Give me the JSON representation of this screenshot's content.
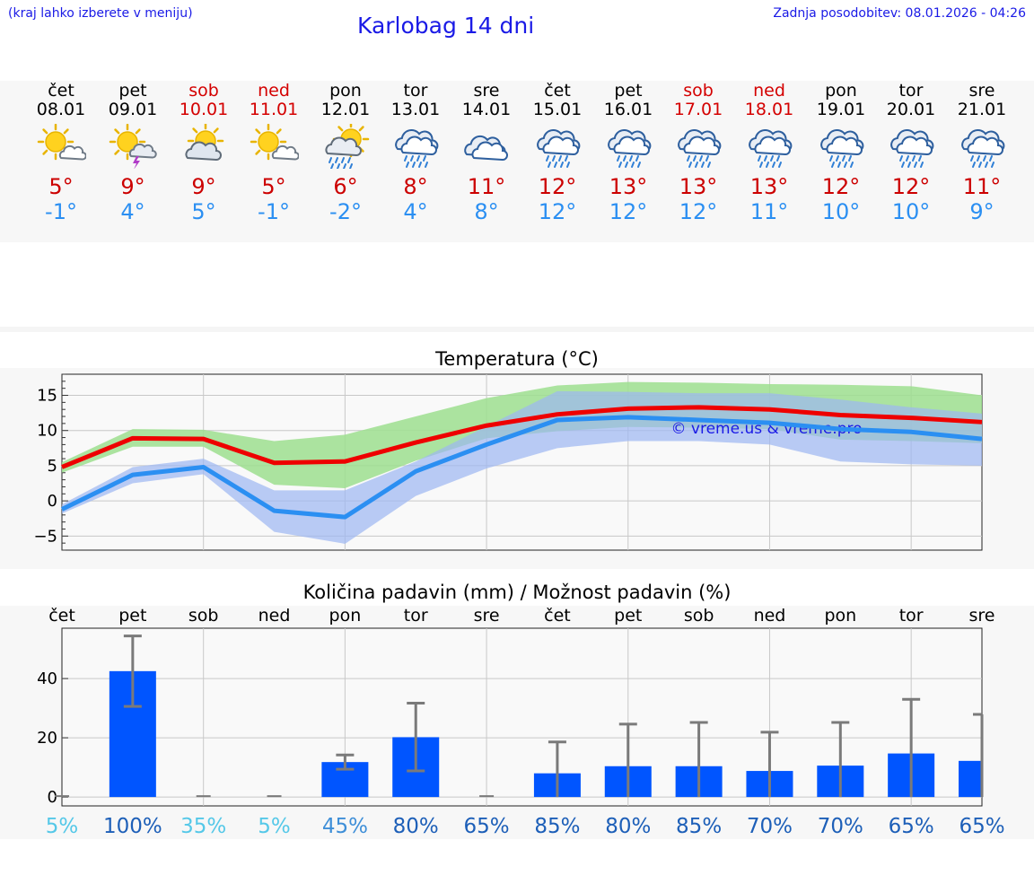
{
  "header": {
    "hint": "(kraj lahko izberete v meniju)",
    "title": "Karlobag 14 dni",
    "updated": "Zadnja posodobitev: 08.01.2026 - 04:26"
  },
  "days": [
    {
      "name": "čet",
      "date": "08.01",
      "weekend": false,
      "icon": "sun-cloud-icon",
      "tmax": "5°",
      "tmin": "-1°"
    },
    {
      "name": "pet",
      "date": "09.01",
      "weekend": false,
      "icon": "sun-thunderstorm-icon",
      "tmax": "9°",
      "tmin": "4°"
    },
    {
      "name": "sob",
      "date": "10.01",
      "weekend": true,
      "icon": "partly-cloudy-icon",
      "tmax": "9°",
      "tmin": "5°"
    },
    {
      "name": "ned",
      "date": "11.01",
      "weekend": true,
      "icon": "sun-cloud-icon",
      "tmax": "5°",
      "tmin": "-1°"
    },
    {
      "name": "pon",
      "date": "12.01",
      "weekend": false,
      "icon": "sun-rain-icon",
      "tmax": "6°",
      "tmin": "-2°"
    },
    {
      "name": "tor",
      "date": "13.01",
      "weekend": false,
      "icon": "rain-cloud-icon",
      "tmax": "8°",
      "tmin": "4°"
    },
    {
      "name": "sre",
      "date": "14.01",
      "weekend": false,
      "icon": "cloudy-icon",
      "tmax": "11°",
      "tmin": "8°"
    },
    {
      "name": "čet",
      "date": "15.01",
      "weekend": false,
      "icon": "rain-cloud-icon",
      "tmax": "12°",
      "tmin": "12°"
    },
    {
      "name": "pet",
      "date": "16.01",
      "weekend": false,
      "icon": "rain-cloud-icon",
      "tmax": "13°",
      "tmin": "12°"
    },
    {
      "name": "sob",
      "date": "17.01",
      "weekend": true,
      "icon": "rain-cloud-icon",
      "tmax": "13°",
      "tmin": "12°"
    },
    {
      "name": "ned",
      "date": "18.01",
      "weekend": true,
      "icon": "rain-cloud-icon",
      "tmax": "13°",
      "tmin": "11°"
    },
    {
      "name": "pon",
      "date": "19.01",
      "weekend": false,
      "icon": "rain-cloud-icon",
      "tmax": "12°",
      "tmin": "10°"
    },
    {
      "name": "tor",
      "date": "20.01",
      "weekend": false,
      "icon": "rain-cloud-icon",
      "tmax": "12°",
      "tmin": "10°"
    },
    {
      "name": "sre",
      "date": "21.01",
      "weekend": false,
      "icon": "rain-cloud-icon",
      "tmax": "11°",
      "tmin": "9°"
    }
  ],
  "colors": {
    "max": "#ee0000",
    "min": "#2b8ff2",
    "band_max": "#9ddf8f",
    "band_min": "#9db6f2",
    "bar": "#0055ff",
    "error": "#7a7a7a",
    "link": "#1a1ae6"
  },
  "chart_data": [
    {
      "type": "line",
      "title": "Temperatura (°C)",
      "watermark": "© vreme.us & vreme.pro",
      "ylim": [
        -7,
        18
      ],
      "yticks": [
        "15",
        "10",
        "5",
        "0",
        "−5"
      ],
      "ytick_values": [
        15,
        10,
        5,
        0,
        -5
      ],
      "x": [
        0,
        1,
        2,
        3,
        4,
        5,
        6,
        7,
        8,
        9,
        10,
        11,
        12,
        13
      ],
      "series": [
        {
          "name": "max",
          "values": [
            4.8,
            8.9,
            8.8,
            5.4,
            5.6,
            8.3,
            10.7,
            12.3,
            13.1,
            13.3,
            13.0,
            12.2,
            11.8,
            11.2
          ]
        },
        {
          "name": "min",
          "values": [
            -1.2,
            3.7,
            4.8,
            -1.4,
            -2.3,
            4.2,
            8.0,
            11.5,
            11.9,
            11.5,
            11.1,
            10.2,
            9.8,
            8.8
          ]
        }
      ],
      "bands": [
        {
          "name": "max_range",
          "low": [
            4.0,
            7.7,
            7.7,
            2.3,
            1.8,
            5.7,
            8.9,
            9.9,
            10.5,
            10.4,
            10.2,
            8.7,
            8.5,
            8.2
          ],
          "high": [
            5.5,
            10.2,
            10.1,
            8.5,
            9.4,
            12.0,
            14.6,
            16.4,
            16.9,
            16.8,
            16.6,
            16.5,
            16.3,
            15.0
          ]
        },
        {
          "name": "min_range",
          "low": [
            -1.8,
            2.5,
            3.8,
            -4.4,
            -6.1,
            0.7,
            4.6,
            7.5,
            8.5,
            8.5,
            8.0,
            5.6,
            5.2,
            5.0
          ],
          "high": [
            -0.5,
            4.8,
            6.0,
            1.5,
            1.5,
            5.6,
            10.6,
            15.6,
            15.5,
            15.3,
            15.3,
            14.4,
            13.3,
            12.4
          ]
        }
      ]
    },
    {
      "type": "bar",
      "title": "Količina padavin (mm) / Možnost padavin (%)",
      "categories": [
        "čet",
        "pet",
        "sob",
        "ned",
        "pon",
        "tor",
        "sre",
        "čet",
        "pet",
        "sob",
        "ned",
        "pon",
        "tor",
        "sre"
      ],
      "ylim": [
        -3,
        57
      ],
      "yticks": [
        "40",
        "20",
        "0"
      ],
      "ytick_values": [
        40,
        20,
        0
      ],
      "values": [
        0,
        42.5,
        0,
        0,
        11.8,
        20.2,
        0,
        8.0,
        10.4,
        10.4,
        8.8,
        10.6,
        14.7,
        12.2
      ],
      "error_low": [
        0,
        30.6,
        0,
        0,
        9.4,
        8.8,
        0,
        0,
        0,
        0,
        0,
        0,
        0,
        0
      ],
      "error_high": [
        0,
        54.4,
        0,
        0,
        14.2,
        31.7,
        0,
        18.6,
        24.6,
        25.2,
        21.9,
        25.2,
        33.0,
        27.9
      ],
      "chance_labels": [
        "5%",
        "100%",
        "35%",
        "5%",
        "45%",
        "80%",
        "65%",
        "85%",
        "80%",
        "85%",
        "70%",
        "70%",
        "65%",
        "65%"
      ],
      "chance_values": [
        5,
        100,
        35,
        5,
        45,
        80,
        65,
        85,
        80,
        85,
        70,
        70,
        65,
        65
      ]
    }
  ]
}
